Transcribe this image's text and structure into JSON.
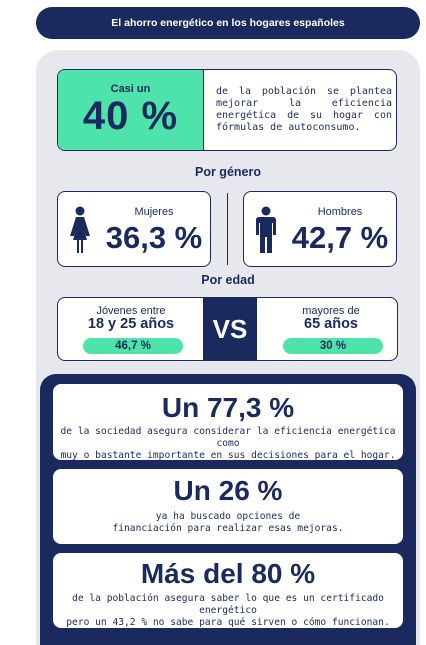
{
  "header": {
    "title": "El ahorro energético en los hogares españoles"
  },
  "colors": {
    "navy": "#1b2a5e",
    "green": "#4ee3ab",
    "panel": "#e7e8ee"
  },
  "intro": {
    "prefix": "Casi un",
    "value": "40 %",
    "description": "de la población se plantea mejorar la eficiencia energética de su hogar con fórmulas de autoconsumo."
  },
  "gender": {
    "label": "Por género",
    "women": {
      "label": "Mujeres",
      "value": "36,3 %",
      "icon": "woman-icon"
    },
    "men": {
      "label": "Hombres",
      "value": "42,7 %",
      "icon": "man-icon"
    }
  },
  "age": {
    "label": "Por edad",
    "young": {
      "line1": "Jóvenes entre",
      "line2": "18 y 25 años",
      "value": "46,7 %"
    },
    "vs": "VS",
    "older": {
      "line1": "mayores de",
      "line2": "65 años",
      "value": "30 %"
    }
  },
  "stats": [
    {
      "value": "Un 77,3 %",
      "line1": "de la sociedad asegura considerar la eficiencia energética como",
      "line2": "muy o bastante importante en sus decisiones para el hogar."
    },
    {
      "value": "Un 26 %",
      "line1": "ya ha buscado opciones de",
      "line2": "financiación para realizar esas mejoras."
    },
    {
      "value": "Más del 80 %",
      "line1": "de la población asegura saber lo que es un certificado energético",
      "line2": "pero un 43,2 % no sabe para qué sirven o cómo funcionan."
    }
  ]
}
